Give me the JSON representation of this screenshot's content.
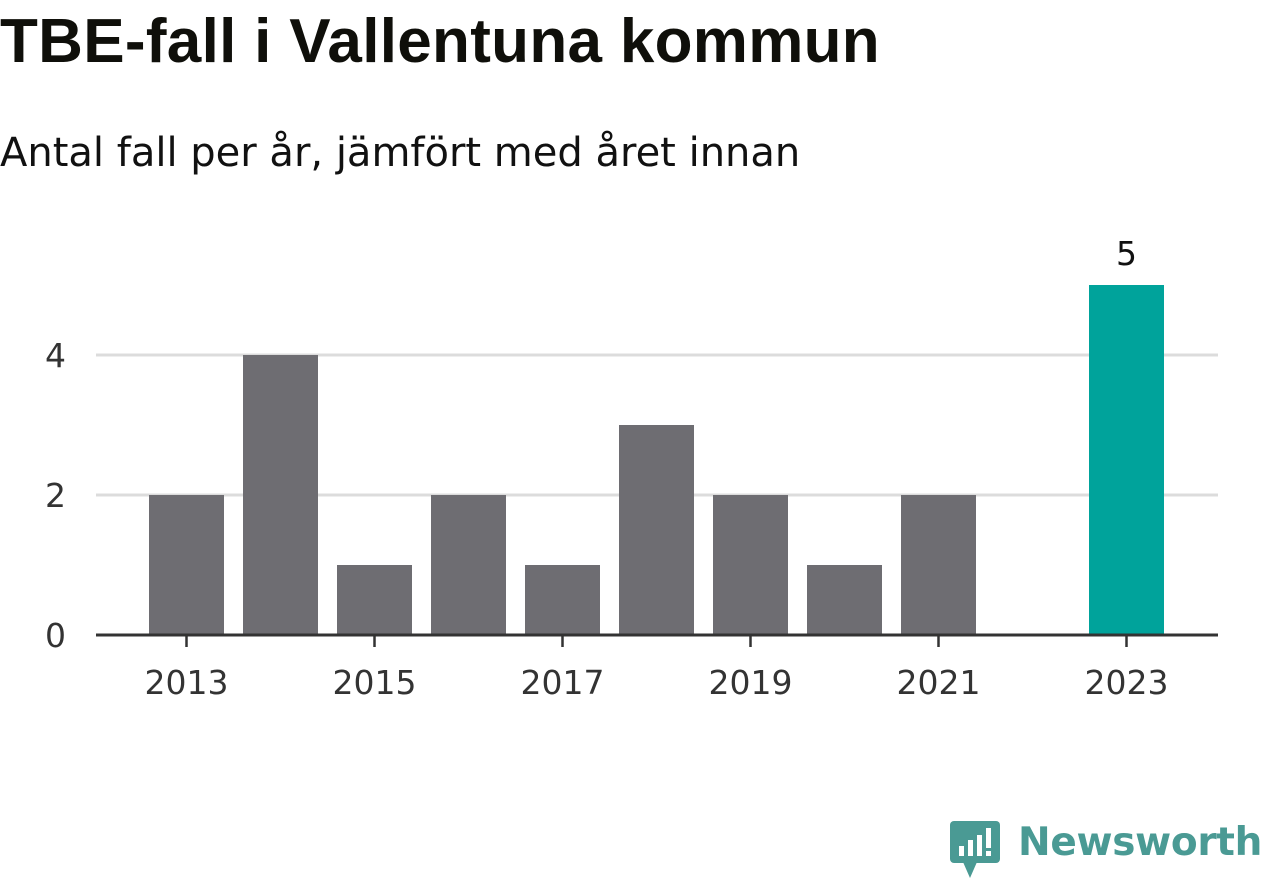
{
  "title": "TBE-fall i Vallentuna kommun",
  "subtitle": "Antal fall per år, jämfört med året innan",
  "chart_data": {
    "type": "bar",
    "title": "TBE-fall i Vallentuna kommun",
    "subtitle": "Antal fall per år, jämfört med året innan",
    "categories": [
      "2013",
      "2014",
      "2015",
      "2016",
      "2017",
      "2018",
      "2019",
      "2020",
      "2021",
      "2022",
      "2023"
    ],
    "series": [
      {
        "values": [
          2,
          4,
          1,
          2,
          1,
          3,
          2,
          1,
          2,
          0,
          5
        ]
      }
    ],
    "highlight": {
      "category": "2023",
      "value": 5,
      "label": "5",
      "color": "#00a39b"
    },
    "bar_color": "#6e6d72",
    "ylim": [
      0,
      5
    ],
    "yticks": [
      0,
      2,
      4
    ],
    "xtick_labels": [
      "2013",
      "2015",
      "2017",
      "2019",
      "2021",
      "2023"
    ],
    "xlabel": "",
    "ylabel": "",
    "grid": true,
    "legend": false
  },
  "branding": {
    "name": "Newsworthy",
    "color": "#4a9a94",
    "icon": "newsworthy-logo-icon"
  }
}
